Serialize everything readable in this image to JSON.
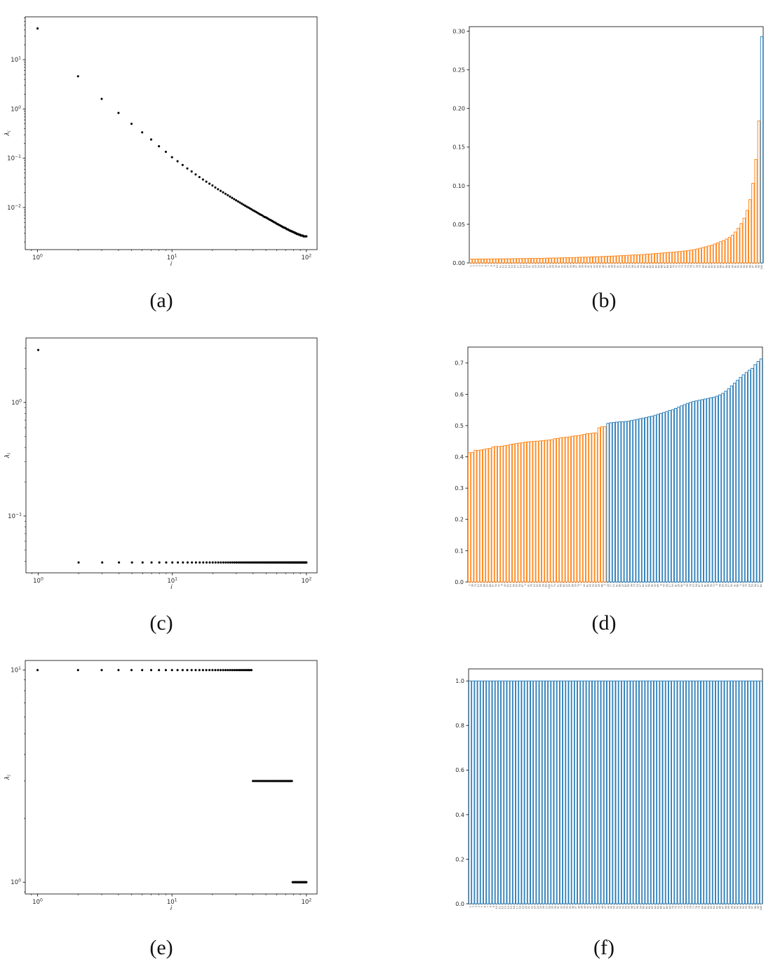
{
  "figure": {
    "background": "#ffffff",
    "captions": {
      "a": "(a)",
      "b": "(b)",
      "c": "(c)",
      "d": "(d)",
      "e": "(e)",
      "f": "(f)"
    }
  },
  "colors": {
    "orange": "#ff7f0e",
    "blue": "#1f77b4",
    "scatter_dot": "#000000",
    "axis": "#000000",
    "tick_label": "#262626"
  },
  "chart_data": [
    {
      "panel": "a",
      "type": "scatter",
      "xscale": "log",
      "yscale": "log",
      "xlabel": "i",
      "ylabel": "λ_i",
      "xlim": [
        0.81,
        120
      ],
      "ylim": [
        0.0014,
        74
      ],
      "xtick_exponents": [
        0,
        1,
        2
      ],
      "ytick_exponents": [
        1,
        0,
        -1,
        -2
      ],
      "x_start": 1,
      "values": [
        43,
        4.6,
        1.6,
        0.83,
        0.5,
        0.335,
        0.24,
        0.175,
        0.135,
        0.105,
        0.087,
        0.073,
        0.062,
        0.054,
        0.047,
        0.0415,
        0.037,
        0.0335,
        0.0305,
        0.028,
        0.0255,
        0.0235,
        0.0218,
        0.0203,
        0.019,
        0.0178,
        0.0167,
        0.0157,
        0.0148,
        0.014,
        0.0133,
        0.0126,
        0.012,
        0.0114,
        0.0109,
        0.0104,
        0.01,
        0.0096,
        0.0092,
        0.0088,
        0.0085,
        0.0082,
        0.0079,
        0.0076,
        0.0073,
        0.0071,
        0.0069,
        0.0066,
        0.0064,
        0.0063,
        0.0061,
        0.0059,
        0.0057,
        0.0056,
        0.0054,
        0.0053,
        0.0051,
        0.005,
        0.0049,
        0.0047,
        0.0046,
        0.0045,
        0.0044,
        0.0043,
        0.0042,
        0.0041,
        0.004,
        0.0039,
        0.0039,
        0.0038,
        0.0037,
        0.0036,
        0.0036,
        0.0035,
        0.0034,
        0.0034,
        0.0033,
        0.0033,
        0.0032,
        0.0032,
        0.0031,
        0.0031,
        0.003,
        0.003,
        0.0029,
        0.0029,
        0.0029,
        0.0028,
        0.0028,
        0.0028,
        0.0027,
        0.0027,
        0.0027,
        0.0027,
        0.0026,
        0.0026,
        0.0026,
        0.0026,
        0.0026,
        0.0026
      ]
    },
    {
      "panel": "b",
      "type": "bar",
      "ylim": [
        0,
        0.306
      ],
      "yticks": [
        "0.00",
        "0.05",
        "0.10",
        "0.15",
        "0.20",
        "0.25",
        "0.30"
      ],
      "split": {
        "n": 99,
        "before": "#ff7f0e",
        "after": "#1f77b4"
      },
      "tick_labels": {
        "range": [
          1,
          100
        ]
      },
      "values": [
        0.005,
        0.005,
        0.005,
        0.0051,
        0.0051,
        0.0051,
        0.0052,
        0.0052,
        0.0052,
        0.0053,
        0.0053,
        0.0053,
        0.0054,
        0.0054,
        0.0055,
        0.0055,
        0.0056,
        0.0056,
        0.0057,
        0.0057,
        0.0058,
        0.0058,
        0.0059,
        0.006,
        0.006,
        0.0061,
        0.0062,
        0.0063,
        0.0064,
        0.0064,
        0.0065,
        0.0066,
        0.0067,
        0.0068,
        0.0069,
        0.007,
        0.0071,
        0.0073,
        0.0074,
        0.0075,
        0.0076,
        0.0078,
        0.0079,
        0.0081,
        0.0082,
        0.0084,
        0.0085,
        0.0087,
        0.0088,
        0.009,
        0.0092,
        0.0094,
        0.0096,
        0.0098,
        0.01,
        0.0102,
        0.0104,
        0.0106,
        0.0108,
        0.011,
        0.0113,
        0.0116,
        0.0119,
        0.0122,
        0.0125,
        0.0128,
        0.0131,
        0.0134,
        0.0137,
        0.014,
        0.0144,
        0.0148,
        0.0152,
        0.0156,
        0.016,
        0.0166,
        0.0173,
        0.0181,
        0.019,
        0.02,
        0.021,
        0.022,
        0.023,
        0.0245,
        0.026,
        0.0275,
        0.029,
        0.031,
        0.033,
        0.036,
        0.04,
        0.045,
        0.051,
        0.058,
        0.068,
        0.082,
        0.103,
        0.134,
        0.184,
        0.293
      ]
    },
    {
      "panel": "c",
      "type": "scatter",
      "xscale": "log",
      "yscale": "log",
      "xlabel": "i",
      "ylabel": "λ_i",
      "xlim": [
        0.81,
        120
      ],
      "ylim": [
        0.0316,
        3.7
      ],
      "xtick_exponents": [
        0,
        1,
        2
      ],
      "ytick_exponents": [
        0,
        -1
      ],
      "x_start": 1,
      "segments": [
        {
          "count": 1,
          "value": 2.9
        },
        {
          "count": 99,
          "value": 0.039
        }
      ]
    },
    {
      "panel": "d",
      "type": "bar",
      "ylim": [
        0,
        0.751
      ],
      "yticks": [
        "0.0",
        "0.1",
        "0.2",
        "0.3",
        "0.4",
        "0.5",
        "0.6",
        "0.7"
      ],
      "split": {
        "n": 47,
        "before": "#ff7f0e",
        "after": "#1f77b4"
      },
      "tick_labels": {
        "values": [
          1,
          38,
          75,
          12,
          49,
          86,
          23,
          60,
          97,
          34,
          71,
          8,
          45,
          82,
          19,
          56,
          93,
          30,
          67,
          4,
          41,
          78,
          15,
          52,
          89,
          26,
          63,
          100,
          37,
          74,
          11,
          48,
          85,
          22,
          59,
          96,
          33,
          70,
          7,
          44,
          81,
          18,
          55,
          92,
          29,
          66,
          3,
          40,
          77,
          14,
          51,
          88,
          25,
          62,
          99,
          36,
          73,
          10,
          47,
          84,
          21,
          58,
          95,
          32,
          69,
          6,
          43,
          80,
          17,
          54,
          91,
          28,
          65,
          2,
          39,
          76,
          13,
          50,
          87,
          24,
          61,
          98,
          35,
          72,
          9,
          46,
          83,
          20,
          57,
          94,
          31,
          68,
          5,
          42,
          79,
          16,
          53,
          90,
          27,
          64
        ]
      },
      "values": [
        0.413,
        0.414,
        0.421,
        0.421,
        0.422,
        0.424,
        0.426,
        0.427,
        0.432,
        0.433,
        0.433,
        0.434,
        0.436,
        0.437,
        0.44,
        0.441,
        0.443,
        0.444,
        0.445,
        0.447,
        0.448,
        0.449,
        0.45,
        0.45,
        0.451,
        0.452,
        0.453,
        0.454,
        0.455,
        0.458,
        0.459,
        0.461,
        0.462,
        0.463,
        0.464,
        0.466,
        0.467,
        0.468,
        0.47,
        0.472,
        0.474,
        0.475,
        0.476,
        0.476,
        0.493,
        0.496,
        0.497,
        0.507,
        0.509,
        0.51,
        0.511,
        0.512,
        0.512,
        0.513,
        0.514,
        0.516,
        0.518,
        0.52,
        0.522,
        0.524,
        0.526,
        0.528,
        0.53,
        0.533,
        0.536,
        0.539,
        0.542,
        0.545,
        0.548,
        0.551,
        0.555,
        0.559,
        0.563,
        0.567,
        0.571,
        0.574,
        0.577,
        0.579,
        0.581,
        0.583,
        0.585,
        0.587,
        0.589,
        0.591,
        0.594,
        0.598,
        0.603,
        0.61,
        0.618,
        0.627,
        0.636,
        0.645,
        0.654,
        0.662,
        0.67,
        0.677,
        0.683,
        0.695,
        0.705,
        0.713
      ]
    },
    {
      "panel": "e",
      "type": "scatter",
      "xscale": "log",
      "yscale": "log",
      "xlabel": "i",
      "ylabel": "λ_i",
      "xlim": [
        0.81,
        120
      ],
      "ylim": [
        0.88,
        11.1
      ],
      "xtick_exponents": [
        0,
        1,
        2
      ],
      "ytick_exponents": [
        1,
        0
      ],
      "x_start": 1,
      "segments": [
        {
          "count": 39,
          "value": 10
        },
        {
          "count": 39,
          "value": 3
        },
        {
          "count": 22,
          "value": 1
        }
      ]
    },
    {
      "panel": "f",
      "type": "bar",
      "ylim": [
        0,
        1.054
      ],
      "yticks": [
        "0.0",
        "0.2",
        "0.4",
        "0.6",
        "0.8",
        "1.0"
      ],
      "split": {
        "n": 0,
        "before": "#ff7f0e",
        "after": "#1f77b4"
      },
      "tick_labels": {
        "range": [
          1,
          100
        ]
      },
      "segments": [
        {
          "count": 100,
          "value": 1.0
        }
      ]
    }
  ]
}
